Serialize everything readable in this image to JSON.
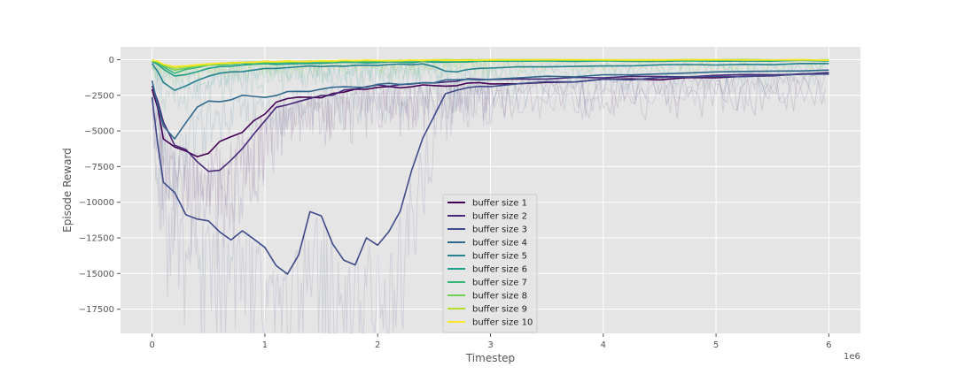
{
  "chart_data": {
    "type": "line",
    "title": "",
    "xlabel": "Timestep",
    "ylabel": "Episode Reward",
    "x_scale_note": "1e6",
    "xlim": [
      -0.28,
      6.28
    ],
    "ylim": [
      -19200,
      900
    ],
    "x_ticks": [
      0,
      1,
      2,
      3,
      4,
      5,
      6
    ],
    "y_ticks": [
      0,
      -2500,
      -5000,
      -7500,
      -10000,
      -12500,
      -15000,
      -17500
    ],
    "x_tick_labels": [
      "0",
      "1",
      "2",
      "3",
      "4",
      "5",
      "6"
    ],
    "y_tick_labels": [
      "0",
      "−2500",
      "−5000",
      "−7500",
      "−10000",
      "−12500",
      "−15000",
      "−17500"
    ],
    "grid": true,
    "legend_position": "lower-center",
    "x": [
      0,
      0.05,
      0.1,
      0.2,
      0.3,
      0.4,
      0.5,
      0.6,
      0.7,
      0.8,
      0.9,
      1.0,
      1.1,
      1.2,
      1.3,
      1.4,
      1.5,
      1.6,
      1.7,
      1.8,
      1.9,
      2.0,
      2.1,
      2.2,
      2.3,
      2.4,
      2.5,
      2.6,
      2.7,
      2.8,
      2.9,
      3.0,
      3.25,
      3.5,
      3.75,
      4.0,
      4.25,
      4.5,
      4.75,
      5.0,
      5.25,
      5.5,
      5.75,
      6.0
    ],
    "series": [
      {
        "name": "buffer size 1",
        "color": "#440154",
        "values": [
          -2000,
          -3500,
          -5500,
          -6500,
          -6800,
          -6500,
          -6300,
          -5800,
          -5500,
          -5000,
          -4300,
          -3600,
          -3000,
          -2800,
          -2700,
          -2650,
          -2600,
          -2400,
          -2300,
          -2200,
          -2100,
          -2050,
          -2000,
          -1950,
          -1900,
          -1850,
          -1800,
          -1800,
          -1750,
          -1700,
          -1700,
          -1650,
          -1600,
          -1550,
          -1500,
          -1450,
          -1400,
          -1350,
          -1300,
          -1250,
          -1200,
          -1100,
          -1050,
          -1000
        ]
      },
      {
        "name": "buffer size 2",
        "color": "#482878",
        "values": [
          -1800,
          -3000,
          -4500,
          -6200,
          -6500,
          -7200,
          -7500,
          -7600,
          -7000,
          -6000,
          -5000,
          -4200,
          -3500,
          -3000,
          -2800,
          -2600,
          -2500,
          -2400,
          -2200,
          -2000,
          -1900,
          -1850,
          -1800,
          -1700,
          -1650,
          -1600,
          -1600,
          -1500,
          -1450,
          -1400,
          -1380,
          -1350,
          -1300,
          -1300,
          -1280,
          -1250,
          -1230,
          -1200,
          -1180,
          -1150,
          -1100,
          -1050,
          -1000,
          -950
        ]
      },
      {
        "name": "buffer size 3",
        "color": "#3e4a89",
        "values": [
          -2500,
          -6000,
          -8500,
          -9500,
          -10500,
          -11200,
          -11600,
          -12000,
          -12200,
          -12100,
          -12000,
          -13500,
          -15000,
          -14800,
          -13000,
          -11200,
          -11000,
          -12500,
          -14600,
          -14300,
          -13000,
          -12600,
          -12700,
          -11000,
          -8000,
          -5800,
          -3800,
          -2400,
          -2200,
          -2000,
          -1900,
          -1800,
          -1700,
          -1600,
          -1500,
          -1400,
          -1350,
          -1300,
          -1250,
          -1200,
          -1150,
          -1100,
          -1050,
          -1000
        ]
      },
      {
        "name": "buffer size 4",
        "color": "#31688e",
        "values": [
          -1500,
          -3200,
          -4800,
          -5500,
          -4200,
          -3500,
          -3000,
          -2800,
          -2700,
          -2600,
          -2600,
          -2500,
          -2400,
          -2300,
          -2200,
          -2100,
          -2050,
          -2000,
          -1950,
          -1900,
          -1850,
          -1800,
          -1750,
          -1700,
          -1650,
          -1600,
          -1550,
          -1500,
          -1450,
          -1400,
          -1350,
          -1300,
          -1250,
          -1200,
          -1150,
          -1100,
          -1050,
          -1000,
          -950,
          -900,
          -850,
          -800,
          -750,
          -700
        ]
      },
      {
        "name": "buffer size 5",
        "color": "#26828e",
        "values": [
          -300,
          -800,
          -1600,
          -2200,
          -1800,
          -1500,
          -1200,
          -1000,
          -900,
          -800,
          -700,
          -650,
          -600,
          -550,
          -500,
          -480,
          -460,
          -440,
          -420,
          -400,
          -400,
          -380,
          -360,
          -340,
          -330,
          -320,
          -500,
          -800,
          -900,
          -700,
          -600,
          -550,
          -500,
          -480,
          -460,
          -440,
          -420,
          -400,
          -380,
          -360,
          -340,
          -320,
          -300,
          -280
        ]
      },
      {
        "name": "buffer size 6",
        "color": "#1f9e89",
        "values": [
          -100,
          -300,
          -700,
          -1200,
          -1000,
          -800,
          -600,
          -500,
          -450,
          -400,
          -350,
          -320,
          -300,
          -280,
          -260,
          -250,
          -240,
          -230,
          -220,
          -210,
          -200,
          -200,
          -190,
          -180,
          -170,
          -160,
          -160,
          -150,
          -150,
          -140,
          -140,
          -130,
          -130,
          -120,
          -120,
          -110,
          -110,
          -100,
          -100,
          -90,
          -90,
          -80,
          -80,
          -70
        ]
      },
      {
        "name": "buffer size 7",
        "color": "#35b779",
        "values": [
          -80,
          -200,
          -500,
          -900,
          -700,
          -550,
          -400,
          -350,
          -300,
          -280,
          -260,
          -240,
          -220,
          -200,
          -190,
          -180,
          -170,
          -160,
          -150,
          -140,
          -130,
          -120,
          -110,
          -100,
          -100,
          -90,
          -90,
          -80,
          -80,
          -70,
          -70,
          -60,
          -60,
          -55,
          -50,
          -50,
          -45,
          -40,
          -40,
          -35,
          -30,
          -30,
          -25,
          -20
        ]
      },
      {
        "name": "buffer size 8",
        "color": "#6ece58",
        "values": [
          -50,
          -150,
          -400,
          -700,
          -600,
          -450,
          -350,
          -300,
          -260,
          -230,
          -200,
          -180,
          -160,
          -140,
          -130,
          -120,
          -110,
          -100,
          -90,
          -85,
          -80,
          -75,
          -70,
          -65,
          -60,
          -55,
          -50,
          -45,
          -40,
          -40,
          -35,
          -35,
          -30,
          -30,
          -25,
          -25,
          -20,
          -20,
          -20,
          -15,
          -15,
          -15,
          -10,
          -10
        ]
      },
      {
        "name": "buffer size 9",
        "color": "#b5de2b",
        "values": [
          -40,
          -120,
          -350,
          -600,
          -500,
          -400,
          -320,
          -280,
          -240,
          -210,
          -180,
          -160,
          -140,
          -130,
          -120,
          -110,
          -100,
          -90,
          -80,
          -75,
          -70,
          -65,
          -60,
          -55,
          -50,
          -45,
          -40,
          -35,
          -30,
          -30,
          -25,
          -25,
          -20,
          -20,
          -15,
          -15,
          -15,
          -10,
          -10,
          -10,
          -10,
          -5,
          -5,
          -5
        ]
      },
      {
        "name": "buffer size 10",
        "color": "#fde725",
        "values": [
          -30,
          -100,
          -300,
          -500,
          -400,
          -350,
          -300,
          -260,
          -220,
          -190,
          -160,
          -140,
          -120,
          -110,
          -100,
          -90,
          -80,
          -70,
          -65,
          -60,
          -55,
          -50,
          -45,
          -40,
          -35,
          -30,
          -30,
          -25,
          -25,
          -20,
          -20,
          -15,
          -15,
          -10,
          -10,
          -10,
          -10,
          -5,
          -5,
          -5,
          -5,
          -5,
          0,
          0
        ]
      }
    ]
  }
}
